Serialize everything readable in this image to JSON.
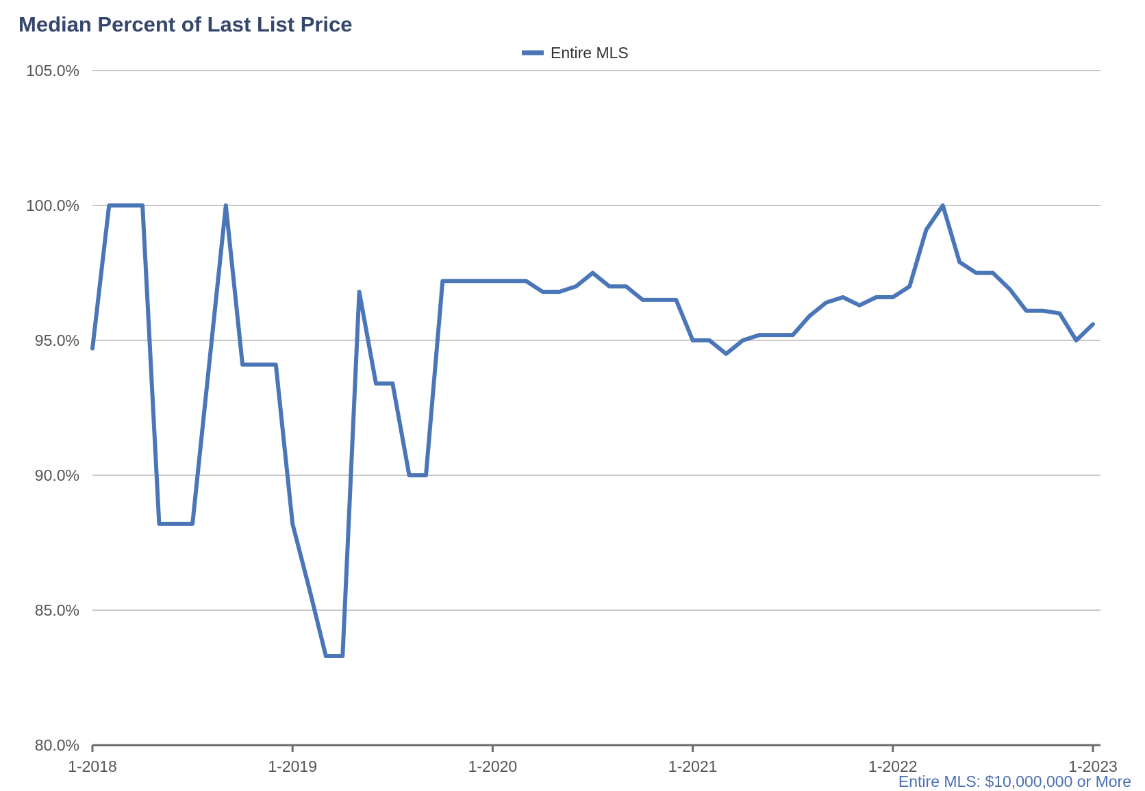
{
  "chart_data": {
    "type": "line",
    "title": "Median Percent of Last List Price",
    "subtitle": "",
    "footnote": "Entire MLS: $10,000,000 or More",
    "xlabel": "",
    "ylabel": "",
    "ylim": [
      80,
      105
    ],
    "y_ticks": [
      80,
      85,
      90,
      95,
      100,
      105
    ],
    "y_tick_labels": [
      "80.0%",
      "85.0%",
      "90.0%",
      "95.0%",
      "100.0%",
      "105.0%"
    ],
    "x_tick_labels": [
      "1-2018",
      "1-2019",
      "1-2020",
      "1-2021",
      "1-2022",
      "1-2023"
    ],
    "x_start": "2018-01",
    "x_end": "2023-01",
    "legend_position": "top-center",
    "grid": true,
    "series": [
      {
        "name": "Entire MLS",
        "color": "#4a76b8",
        "x": [
          "2018-01",
          "2018-02",
          "2018-03",
          "2018-04",
          "2018-05",
          "2018-06",
          "2018-07",
          "2018-08",
          "2018-09",
          "2018-10",
          "2018-11",
          "2018-12",
          "2019-01",
          "2019-02",
          "2019-03",
          "2019-04",
          "2019-05",
          "2019-06",
          "2019-07",
          "2019-08",
          "2019-09",
          "2019-10",
          "2019-11",
          "2019-12",
          "2020-01",
          "2020-02",
          "2020-03",
          "2020-04",
          "2020-05",
          "2020-06",
          "2020-07",
          "2020-08",
          "2020-09",
          "2020-10",
          "2020-11",
          "2020-12",
          "2021-01",
          "2021-02",
          "2021-03",
          "2021-04",
          "2021-05",
          "2021-06",
          "2021-07",
          "2021-08",
          "2021-09",
          "2021-10",
          "2021-11",
          "2021-12",
          "2022-01",
          "2022-02",
          "2022-03",
          "2022-04",
          "2022-05",
          "2022-06",
          "2022-07",
          "2022-08",
          "2022-09",
          "2022-10",
          "2022-11",
          "2022-12",
          "2023-01"
        ],
        "values": [
          94.7,
          100.0,
          100.0,
          100.0,
          88.2,
          88.2,
          88.2,
          94.1,
          100.0,
          94.1,
          94.1,
          94.1,
          88.2,
          85.8,
          83.3,
          83.3,
          96.8,
          93.4,
          93.4,
          90.0,
          90.0,
          97.2,
          97.2,
          97.2,
          97.2,
          97.2,
          97.2,
          96.8,
          96.8,
          97.0,
          97.5,
          97.0,
          97.0,
          96.5,
          96.5,
          96.5,
          95.0,
          95.0,
          94.5,
          95.0,
          95.2,
          95.2,
          95.2,
          95.9,
          96.4,
          96.6,
          96.3,
          96.6,
          96.6,
          97.0,
          99.1,
          100.0,
          97.9,
          97.5,
          97.5,
          96.9,
          96.1,
          96.1,
          96.0,
          95.0,
          95.6
        ]
      }
    ]
  }
}
